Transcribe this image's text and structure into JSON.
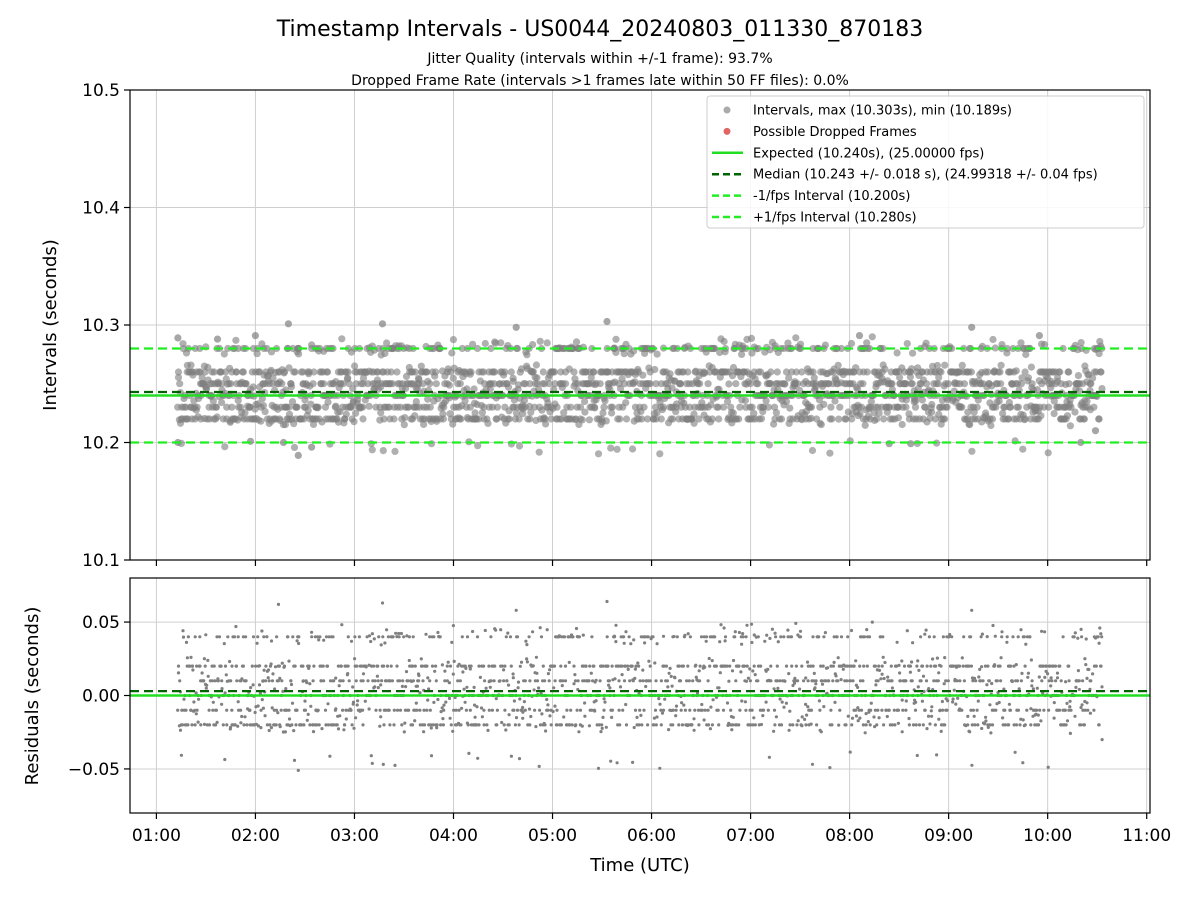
{
  "chart_data": {
    "type": "scatter",
    "title": "Timestamp Intervals - US0044_20240803_011330_870183",
    "subtitle_lines": [
      "Jitter Quality (intervals within +/-1 frame): 93.7%",
      "Dropped Frame Rate (intervals >1 frames late within 50 FF files): 0.0%"
    ],
    "xlabel": "Time (UTC)",
    "xlim": [
      "00:44",
      "11:02"
    ],
    "x_ticks": [
      "01:00",
      "02:00",
      "03:00",
      "04:00",
      "05:00",
      "06:00",
      "07:00",
      "08:00",
      "09:00",
      "10:00",
      "11:00"
    ],
    "data_time_range": [
      "01:13",
      "10:33"
    ],
    "grid": true,
    "point_color": "#808080",
    "dropped_color": "#e06666",
    "expected_color": "#22dd22",
    "median_color": "#006400",
    "interval_color": "#22ee22",
    "top_panel": {
      "ylabel": "Intervals (seconds)",
      "ylim": [
        10.1,
        10.5
      ],
      "y_ticks": [
        "10.1",
        "10.2",
        "10.3",
        "10.4",
        "10.5"
      ],
      "expected": 10.24,
      "median": 10.243,
      "minus_interval": 10.2,
      "plus_interval": 10.28,
      "max": 10.303,
      "min": 10.189,
      "sample_points": [
        [
          "01:13",
          10.289
        ],
        [
          "01:13",
          10.2
        ],
        [
          "01:37",
          10.288
        ],
        [
          "01:57",
          10.201
        ],
        [
          "02:00",
          10.291
        ],
        [
          "02:17",
          10.2
        ],
        [
          "02:20",
          10.301
        ],
        [
          "02:26",
          10.189
        ],
        [
          "02:34",
          10.196
        ],
        [
          "03:17",
          10.301
        ],
        [
          "04:38",
          10.298
        ],
        [
          "05:33",
          10.303
        ],
        [
          "08:06",
          10.291
        ],
        [
          "08:24",
          10.199
        ],
        [
          "08:37",
          10.199
        ],
        [
          "09:14",
          10.298
        ],
        [
          "09:55",
          10.291
        ],
        [
          "10:20",
          10.2
        ],
        [
          "10:29",
          10.21
        ]
      ]
    },
    "bottom_panel": {
      "ylabel": "Residuals (seconds)",
      "ylim": [
        -0.08,
        0.08
      ],
      "y_ticks": [
        "−0.05",
        "0.00",
        "0.05"
      ],
      "expected": 0.0,
      "median": 0.003,
      "sample_points": [
        [
          "02:14",
          0.062
        ],
        [
          "02:26",
          -0.051
        ],
        [
          "03:17",
          0.063
        ],
        [
          "04:38",
          0.058
        ],
        [
          "05:33",
          0.064
        ],
        [
          "09:14",
          0.058
        ],
        [
          "10:33",
          -0.03
        ]
      ]
    },
    "legend": {
      "position": "top-right",
      "entries": [
        {
          "label": "Intervals, max (10.303s), min (10.189s)",
          "marker": "point",
          "color": "#aaaaaa"
        },
        {
          "label": "Possible Dropped Frames",
          "marker": "point",
          "color": "#e06666"
        },
        {
          "label": "Expected (10.240s), (25.00000 fps)",
          "marker": "solid",
          "color": "#22dd22"
        },
        {
          "label": "Median (10.243 +/- 0.018 s), (24.99318 +/- 0.04 fps)",
          "marker": "dashed",
          "color": "#006400"
        },
        {
          "label": "-1/fps Interval (10.200s)",
          "marker": "dashed",
          "color": "#22ee22"
        },
        {
          "label": "+1/fps Interval (10.280s)",
          "marker": "dashed",
          "color": "#22ee22"
        }
      ]
    }
  }
}
